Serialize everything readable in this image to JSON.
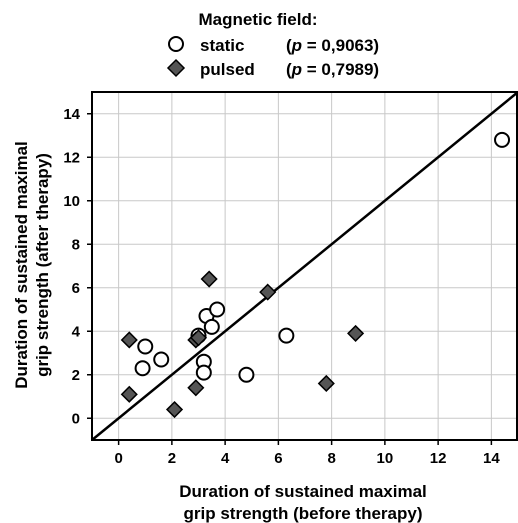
{
  "chart_data": {
    "type": "scatter",
    "legend": {
      "title": "Magnetic field:",
      "placement": "top-center"
    },
    "xlabel": [
      "Duration of sustained maximal",
      "grip strength  (before therapy)"
    ],
    "ylabel": [
      "Duration of sustained maximal",
      "grip strength  (after therapy)"
    ],
    "xlim": [
      -1,
      15
    ],
    "ylim": [
      -1,
      15
    ],
    "x_ticks": [
      0,
      2,
      4,
      6,
      8,
      10,
      12,
      14
    ],
    "y_ticks": [
      0,
      2,
      4,
      6,
      8,
      10,
      12,
      14
    ],
    "grid": true,
    "reference_line": {
      "from": [
        -1,
        -1
      ],
      "to": [
        15,
        15
      ]
    },
    "series": [
      {
        "name": "static",
        "label": "static",
        "stat": "(p = 0,9063)",
        "stat_prefix": "(",
        "stat_var": "p",
        "stat_suffix": " = 0,9063)",
        "marker": "circle",
        "fill": "#ffffff",
        "stroke": "#000000",
        "points": [
          {
            "x": 0.9,
            "y": 2.3
          },
          {
            "x": 1.0,
            "y": 3.3
          },
          {
            "x": 1.6,
            "y": 2.7
          },
          {
            "x": 3.0,
            "y": 3.8
          },
          {
            "x": 3.2,
            "y": 2.6
          },
          {
            "x": 3.2,
            "y": 2.1
          },
          {
            "x": 3.3,
            "y": 4.7
          },
          {
            "x": 3.5,
            "y": 4.2
          },
          {
            "x": 3.7,
            "y": 5.0
          },
          {
            "x": 4.8,
            "y": 2.0
          },
          {
            "x": 6.3,
            "y": 3.8
          },
          {
            "x": 14.4,
            "y": 12.8
          }
        ]
      },
      {
        "name": "pulsed",
        "label": "pulsed",
        "stat": "(p = 0,7989)",
        "stat_prefix": "(",
        "stat_var": "p",
        "stat_suffix": " = 0,7989)",
        "marker": "diamond",
        "fill": "#555555",
        "stroke": "#000000",
        "points": [
          {
            "x": 0.4,
            "y": 3.6
          },
          {
            "x": 0.4,
            "y": 1.1
          },
          {
            "x": 2.1,
            "y": 0.4
          },
          {
            "x": 2.9,
            "y": 1.4
          },
          {
            "x": 2.9,
            "y": 3.6
          },
          {
            "x": 3.0,
            "y": 3.7
          },
          {
            "x": 3.4,
            "y": 6.4
          },
          {
            "x": 5.6,
            "y": 5.8
          },
          {
            "x": 7.8,
            "y": 1.6
          },
          {
            "x": 8.9,
            "y": 3.9
          }
        ]
      }
    ]
  }
}
